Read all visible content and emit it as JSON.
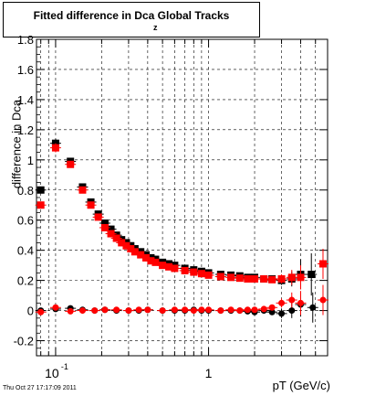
{
  "title": {
    "main": "Fitted difference in Dca Global Tracks",
    "subscript": "z"
  },
  "footer": "Thu Oct 27 17:17:09 2011",
  "chart_data": {
    "type": "scatter",
    "xlabel": "pT (GeV/c)",
    "ylabel": "difference in Dca",
    "xscale": "log",
    "xlim": [
      0.075,
      6.0
    ],
    "ylim": [
      -0.3,
      1.8
    ],
    "yticks": [
      -0.2,
      0,
      0.2,
      0.4,
      0.6,
      0.8,
      1,
      1.2,
      1.4,
      1.6,
      1.8
    ],
    "ytick_labels": [
      "-0.2",
      "0",
      "0.2",
      "0.4",
      "0.6",
      "0.8",
      "1",
      "1.2",
      "1.4",
      "1.6",
      "1.8"
    ],
    "xticks_major": [
      0.1,
      1
    ],
    "xtick_labels": [
      {
        "base": "10",
        "exp": "-1"
      },
      {
        "base": "1",
        "exp": ""
      }
    ],
    "grid": true,
    "colors": {
      "black": "#000000",
      "red": "#ff0000"
    },
    "series": [
      {
        "marker": "square",
        "color": "#000000",
        "x": [
          0.08,
          0.1,
          0.125,
          0.15,
          0.17,
          0.19,
          0.21,
          0.23,
          0.25,
          0.27,
          0.29,
          0.31,
          0.33,
          0.36,
          0.39,
          0.42,
          0.45,
          0.5,
          0.55,
          0.6,
          0.7,
          0.8,
          0.9,
          1.0,
          1.2,
          1.4,
          1.6,
          1.8,
          2.0,
          2.3,
          2.6,
          3.0,
          3.5,
          4.0,
          4.7
        ],
        "y": [
          0.8,
          1.11,
          0.99,
          0.82,
          0.72,
          0.64,
          0.58,
          0.54,
          0.5,
          0.47,
          0.45,
          0.43,
          0.41,
          0.39,
          0.37,
          0.35,
          0.34,
          0.32,
          0.31,
          0.3,
          0.28,
          0.27,
          0.26,
          0.25,
          0.24,
          0.235,
          0.23,
          0.22,
          0.22,
          0.21,
          0.21,
          0.2,
          0.21,
          0.24,
          0.24
        ],
        "yerr": [
          0.02,
          0.03,
          0.02,
          0.01,
          0.01,
          0.01,
          0.01,
          0.01,
          0.01,
          0.01,
          0.01,
          0.01,
          0.01,
          0.01,
          0.01,
          0.01,
          0.01,
          0.01,
          0.01,
          0.01,
          0.01,
          0.01,
          0.01,
          0.01,
          0.01,
          0.01,
          0.01,
          0.01,
          0.01,
          0.02,
          0.02,
          0.03,
          0.05,
          0.1,
          0.14
        ]
      },
      {
        "marker": "square",
        "color": "#ff0000",
        "x": [
          0.08,
          0.1,
          0.125,
          0.15,
          0.17,
          0.19,
          0.21,
          0.23,
          0.25,
          0.27,
          0.29,
          0.31,
          0.33,
          0.36,
          0.39,
          0.42,
          0.45,
          0.5,
          0.55,
          0.6,
          0.7,
          0.8,
          0.9,
          1.0,
          1.2,
          1.4,
          1.6,
          1.8,
          2.0,
          2.3,
          2.6,
          3.0,
          3.5,
          4.0,
          5.6
        ],
        "y": [
          0.7,
          1.08,
          0.97,
          0.8,
          0.7,
          0.62,
          0.55,
          0.51,
          0.48,
          0.45,
          0.43,
          0.41,
          0.39,
          0.37,
          0.35,
          0.33,
          0.32,
          0.3,
          0.29,
          0.28,
          0.265,
          0.255,
          0.245,
          0.235,
          0.225,
          0.22,
          0.215,
          0.21,
          0.21,
          0.21,
          0.205,
          0.21,
          0.22,
          0.22,
          0.31
        ],
        "yerr": [
          0.02,
          0.03,
          0.02,
          0.01,
          0.01,
          0.01,
          0.01,
          0.01,
          0.01,
          0.01,
          0.01,
          0.01,
          0.01,
          0.01,
          0.01,
          0.01,
          0.01,
          0.01,
          0.01,
          0.01,
          0.01,
          0.01,
          0.01,
          0.01,
          0.01,
          0.01,
          0.01,
          0.01,
          0.01,
          0.02,
          0.02,
          0.03,
          0.05,
          0.08,
          0.1
        ]
      },
      {
        "marker": "circle",
        "color": "#000000",
        "x": [
          0.08,
          0.1,
          0.125,
          0.15,
          0.18,
          0.21,
          0.25,
          0.3,
          0.35,
          0.4,
          0.5,
          0.6,
          0.7,
          0.8,
          0.9,
          1.0,
          1.2,
          1.4,
          1.6,
          1.8,
          2.0,
          2.3,
          2.6,
          3.0,
          3.5,
          4.0,
          4.8
        ],
        "y": [
          0.0,
          0.01,
          0.015,
          0.005,
          0.0,
          0.005,
          0.0,
          0.0,
          0.0,
          0.005,
          0.0,
          0.0,
          0.0,
          0.005,
          0.0,
          0.0,
          0.0,
          0.0,
          0.0,
          -0.005,
          -0.01,
          0.0,
          -0.01,
          -0.02,
          0.0,
          0.04,
          0.02
        ],
        "yerr": [
          0.01,
          0.01,
          0.01,
          0.01,
          0.005,
          0.005,
          0.005,
          0.005,
          0.005,
          0.005,
          0.005,
          0.005,
          0.005,
          0.005,
          0.005,
          0.005,
          0.01,
          0.01,
          0.01,
          0.01,
          0.01,
          0.015,
          0.02,
          0.03,
          0.05,
          0.08,
          0.1
        ]
      },
      {
        "marker": "circle",
        "color": "#ff0000",
        "x": [
          0.08,
          0.1,
          0.125,
          0.15,
          0.18,
          0.21,
          0.25,
          0.3,
          0.35,
          0.4,
          0.5,
          0.6,
          0.7,
          0.8,
          0.9,
          1.0,
          1.2,
          1.4,
          1.6,
          1.8,
          2.0,
          2.3,
          2.6,
          3.0,
          3.5,
          4.0,
          5.6
        ],
        "y": [
          -0.01,
          0.02,
          -0.005,
          0.0,
          0.0,
          0.005,
          0.005,
          0.0,
          0.005,
          0.005,
          0.0,
          0.005,
          0.005,
          0.0,
          0.005,
          0.005,
          0.0,
          0.005,
          0.0,
          0.005,
          0.005,
          0.01,
          0.02,
          0.05,
          0.07,
          0.05,
          0.07
        ],
        "yerr": [
          0.01,
          0.01,
          0.01,
          0.01,
          0.005,
          0.005,
          0.005,
          0.005,
          0.005,
          0.005,
          0.005,
          0.005,
          0.005,
          0.005,
          0.005,
          0.005,
          0.01,
          0.01,
          0.01,
          0.01,
          0.01,
          0.015,
          0.02,
          0.03,
          0.05,
          0.08,
          0.1
        ]
      }
    ]
  }
}
